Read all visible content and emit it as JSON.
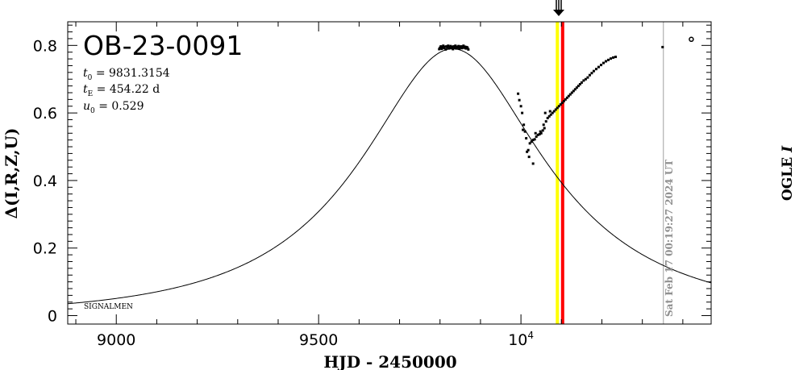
{
  "event_title": "OB-23-0091",
  "params": {
    "t0_symbol": "t",
    "t0_sub": "0",
    "t0_text": " = 9831.3154",
    "tE_symbol": "t",
    "tE_sub": "E",
    "tE_text": " = 454.22 d",
    "u0_symbol": "u",
    "u0_sub": "0",
    "u0_text": " = 0.529"
  },
  "credit": "SIGNALMEN",
  "date_stamp": "Sat Feb 17 00:19:27 2024 UT",
  "band_label": "OGLE",
  "band_label_italic": "I",
  "colors": {
    "now_line": "#ff0000",
    "yellow_line": "#ffff00",
    "date_line": "#a0a0a0",
    "model": "#000000",
    "data": "#000000"
  },
  "chart_data": {
    "type": "scatter",
    "title": "OB-23-0091",
    "xlabel": "HJD - 2450000",
    "ylabel": "Δ(I,R,Z,U)",
    "xlim": [
      8880,
      10470
    ],
    "ylim": [
      -0.025,
      0.87
    ],
    "x_ticks": [
      {
        "value": 9000,
        "label": "9000"
      },
      {
        "value": 9500,
        "label": "9500"
      },
      {
        "value": 10000,
        "label": "10",
        "exp": "4"
      }
    ],
    "y_ticks": [
      {
        "value": 0,
        "label": "0"
      },
      {
        "value": 0.2,
        "label": "0.2"
      },
      {
        "value": 0.4,
        "label": "0.4"
      },
      {
        "value": 0.6,
        "label": "0.6"
      },
      {
        "value": 0.8,
        "label": "0.8"
      }
    ],
    "grid": false,
    "model": {
      "t0": 9831.3154,
      "tE": 454.22,
      "u0": 0.529
    },
    "vertical_lines": [
      {
        "name": "yellow",
        "x": 10090
      },
      {
        "name": "red",
        "x": 10103
      },
      {
        "name": "date",
        "x": 10352
      }
    ],
    "series": [
      {
        "points": [
          [
            9798,
            0.789
          ],
          [
            9800,
            0.793
          ],
          [
            9802,
            0.797
          ],
          [
            9804,
            0.79
          ],
          [
            9806,
            0.795
          ],
          [
            9808,
            0.799
          ],
          [
            9810,
            0.792
          ],
          [
            9812,
            0.796
          ],
          [
            9814,
            0.788
          ],
          [
            9816,
            0.797
          ],
          [
            9818,
            0.793
          ],
          [
            9820,
            0.799
          ],
          [
            9822,
            0.791
          ],
          [
            9824,
            0.795
          ],
          [
            9826,
            0.798
          ],
          [
            9828,
            0.792
          ],
          [
            9830,
            0.796
          ],
          [
            9832,
            0.789
          ],
          [
            9834,
            0.797
          ],
          [
            9836,
            0.794
          ],
          [
            9838,
            0.799
          ],
          [
            9840,
            0.791
          ],
          [
            9842,
            0.796
          ],
          [
            9844,
            0.793
          ],
          [
            9846,
            0.798
          ],
          [
            9848,
            0.79
          ],
          [
            9850,
            0.795
          ],
          [
            9852,
            0.797
          ],
          [
            9854,
            0.792
          ],
          [
            9856,
            0.796
          ],
          [
            9858,
            0.799
          ],
          [
            9860,
            0.793
          ],
          [
            9862,
            0.796
          ],
          [
            9864,
            0.791
          ],
          [
            9866,
            0.795
          ],
          [
            9868,
            0.793
          ],
          [
            9870,
            0.788
          ],
          [
            9993,
            0.657
          ],
          [
            9996,
            0.638
          ],
          [
            10000,
            0.62
          ],
          [
            10003,
            0.6
          ],
          [
            10007,
            0.565
          ],
          [
            10010,
            0.545
          ],
          [
            10013,
            0.525
          ],
          [
            10018,
            0.49
          ],
          [
            10022,
            0.51
          ],
          [
            10026,
            0.515
          ],
          [
            10030,
            0.52
          ],
          [
            10034,
            0.522
          ],
          [
            10038,
            0.53
          ],
          [
            10042,
            0.535
          ],
          [
            10046,
            0.537
          ],
          [
            10050,
            0.54
          ],
          [
            10054,
            0.548
          ],
          [
            10058,
            0.555
          ],
          [
            10062,
            0.575
          ],
          [
            10066,
            0.585
          ],
          [
            10070,
            0.59
          ],
          [
            10074,
            0.595
          ],
          [
            10078,
            0.6
          ],
          [
            10082,
            0.605
          ],
          [
            10086,
            0.61
          ],
          [
            10090,
            0.615
          ],
          [
            10094,
            0.62
          ],
          [
            10098,
            0.625
          ],
          [
            10102,
            0.63
          ],
          [
            10106,
            0.635
          ],
          [
            10110,
            0.64
          ],
          [
            10114,
            0.645
          ],
          [
            10118,
            0.65
          ],
          [
            10122,
            0.655
          ],
          [
            10126,
            0.66
          ],
          [
            10130,
            0.665
          ],
          [
            10134,
            0.67
          ],
          [
            10138,
            0.675
          ],
          [
            10142,
            0.68
          ],
          [
            10146,
            0.685
          ],
          [
            10150,
            0.69
          ],
          [
            10155,
            0.696
          ],
          [
            10160,
            0.7
          ],
          [
            10165,
            0.705
          ],
          [
            10170,
            0.712
          ],
          [
            10175,
            0.718
          ],
          [
            10180,
            0.724
          ],
          [
            10186,
            0.73
          ],
          [
            10192,
            0.736
          ],
          [
            10198,
            0.742
          ],
          [
            10204,
            0.748
          ],
          [
            10210,
            0.753
          ],
          [
            10216,
            0.757
          ],
          [
            10222,
            0.761
          ],
          [
            10228,
            0.764
          ],
          [
            10234,
            0.766
          ],
          [
            10036,
            0.54
          ],
          [
            10020,
            0.47
          ],
          [
            10015,
            0.485
          ],
          [
            10060,
            0.6
          ],
          [
            10072,
            0.605
          ],
          [
            10005,
            0.55
          ],
          [
            10030,
            0.45
          ],
          [
            10048,
            0.545
          ],
          [
            10056,
            0.565
          ],
          [
            10350,
            0.795
          ],
          [
            10421,
            0.818
          ]
        ]
      }
    ]
  }
}
